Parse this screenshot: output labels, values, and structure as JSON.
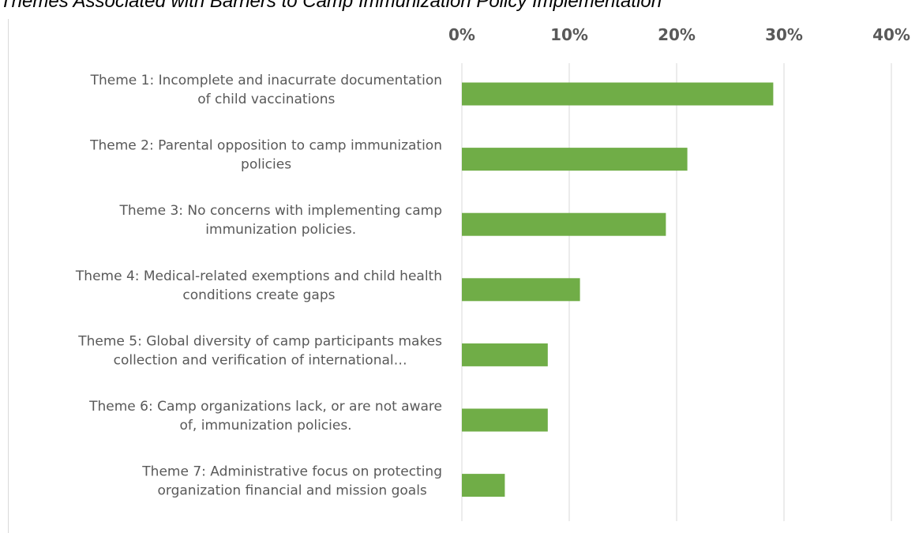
{
  "chart_data": {
    "type": "bar",
    "orientation": "horizontal",
    "title": "Themes Associated with Barriers to Camp Immunization Policy Implementation",
    "categories": [
      [
        "Theme 1: Incomplete and inacurrate documentation",
        "of child vaccinations"
      ],
      [
        "Theme 2: Parental opposition to camp immunization",
        "policies"
      ],
      [
        "Theme 3: No concerns with implementing camp",
        "immunization policies."
      ],
      [
        "Theme 4: Medical-related exemptions and child health",
        "conditions create gaps"
      ],
      [
        "Theme 5: Global diversity of camp participants makes",
        "collection and verification of international…"
      ],
      [
        "Theme 6: Camp organizations lack, or are not aware",
        "of, immunization policies."
      ],
      [
        "Theme 7: Administrative focus on protecting",
        "organization financial and mission goals"
      ]
    ],
    "values": [
      29,
      21,
      19,
      11,
      8,
      8,
      4
    ],
    "xlim": [
      0,
      40
    ],
    "x_ticks": [
      0,
      10,
      20,
      30,
      40
    ],
    "x_tick_labels": [
      "0%",
      "10%",
      "20%",
      "30%",
      "40%"
    ],
    "x_axis_position": "top",
    "grid": true,
    "bar_color": "#70AD47",
    "grid_color": "#D9D9D9",
    "label_color": "#595959"
  }
}
